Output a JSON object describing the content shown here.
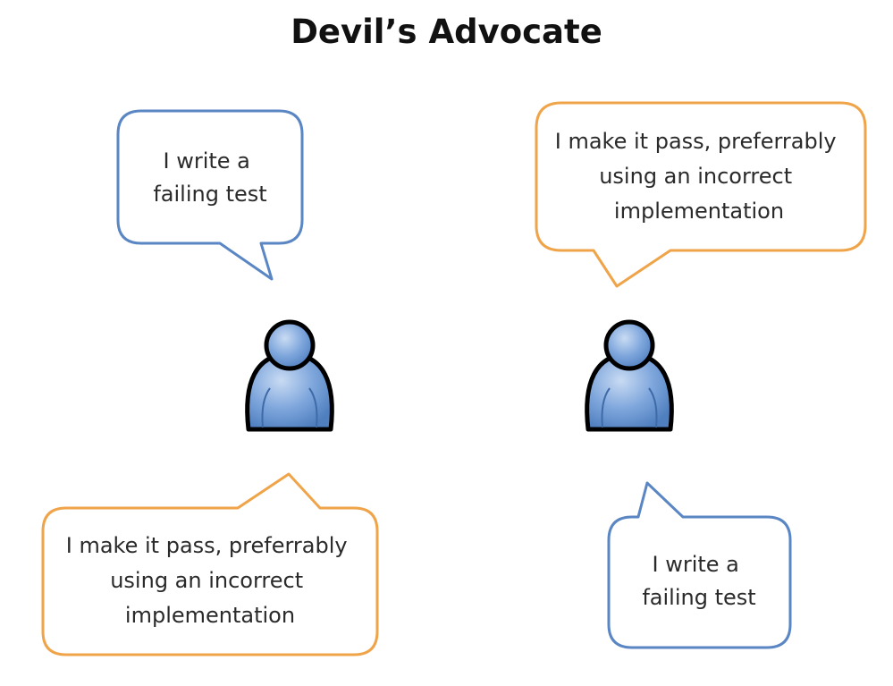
{
  "title": "Devil’s Advocate",
  "colors": {
    "blue_bubble_stroke": "#5a86c4",
    "orange_bubble_stroke": "#f0a44a",
    "person_fill": "#7ea6dc",
    "person_outline": "#000000"
  },
  "icons": [
    "person-icon",
    "person-icon"
  ],
  "bubbles": [
    {
      "id": "top-left",
      "style": "blue",
      "lines": [
        "I write a",
        "failing test"
      ]
    },
    {
      "id": "top-right",
      "style": "orange",
      "lines": [
        "I make it pass, preferrably",
        "using an incorrect",
        "implementation"
      ]
    },
    {
      "id": "bottom-left",
      "style": "orange",
      "lines": [
        "I make it pass, preferrably",
        "using an incorrect",
        "implementation"
      ]
    },
    {
      "id": "bottom-right",
      "style": "blue",
      "lines": [
        "I write a",
        "failing test"
      ]
    }
  ]
}
